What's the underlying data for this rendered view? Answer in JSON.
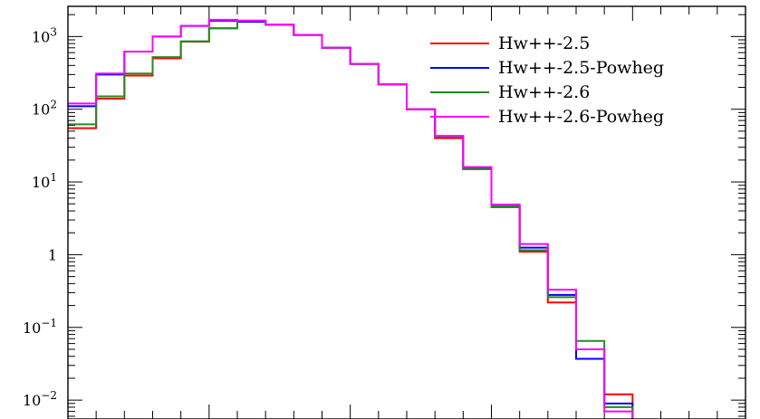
{
  "chart_data": {
    "type": "line",
    "subtype": "step-histogram",
    "title": "",
    "xlabel": "",
    "ylabel": "",
    "yscale": "log",
    "ylim": [
      0.0055,
      2600
    ],
    "xlim": [
      0,
      24
    ],
    "legend_position": "top-right",
    "ytick_labels": [
      {
        "value": 1000,
        "base": "10",
        "exp": "3"
      },
      {
        "value": 100,
        "base": "10",
        "exp": "2"
      },
      {
        "value": 10,
        "base": "10",
        "exp": "1"
      },
      {
        "value": 1,
        "base": "1",
        "exp": ""
      },
      {
        "value": 0.1,
        "base": "10",
        "exp": "−1"
      },
      {
        "value": 0.01,
        "base": "10",
        "exp": "−2"
      }
    ],
    "bin_edges": [
      0,
      1,
      2,
      3,
      4,
      5,
      6,
      7,
      8,
      9,
      10,
      11,
      12,
      13,
      14,
      15,
      16,
      17,
      18,
      19,
      20,
      21,
      22,
      23,
      24
    ],
    "series": [
      {
        "name": "Hw++-2.5",
        "color": "#ff0000",
        "values": [
          55,
          140,
          290,
          500,
          850,
          1300,
          1650,
          1450,
          1050,
          700,
          420,
          220,
          100,
          40,
          15,
          4.5,
          1.1,
          0.22,
          0.05,
          0.012,
          null,
          null,
          null,
          null
        ]
      },
      {
        "name": "Hw++-2.5-Powheg",
        "color": "#0000ff",
        "values": [
          110,
          300,
          620,
          1000,
          1400,
          1650,
          1600,
          1450,
          1050,
          700,
          420,
          220,
          100,
          42,
          15.5,
          4.6,
          1.25,
          0.28,
          0.037,
          0.009,
          null,
          null,
          null,
          null
        ]
      },
      {
        "name": "Hw++-2.6",
        "color": "#228b22",
        "values": [
          62,
          150,
          310,
          520,
          860,
          1300,
          1650,
          1450,
          1050,
          700,
          420,
          220,
          100,
          42,
          15,
          4.6,
          1.15,
          0.26,
          0.065,
          0.008,
          null,
          null,
          null,
          null
        ]
      },
      {
        "name": "Hw++-2.6-Powheg",
        "color": "#ff00ff",
        "values": [
          120,
          310,
          620,
          1000,
          1400,
          1700,
          1650,
          1450,
          1050,
          700,
          420,
          220,
          100,
          43,
          16,
          4.9,
          1.4,
          0.33,
          0.05,
          0.007,
          null,
          null,
          null,
          null
        ]
      }
    ]
  }
}
